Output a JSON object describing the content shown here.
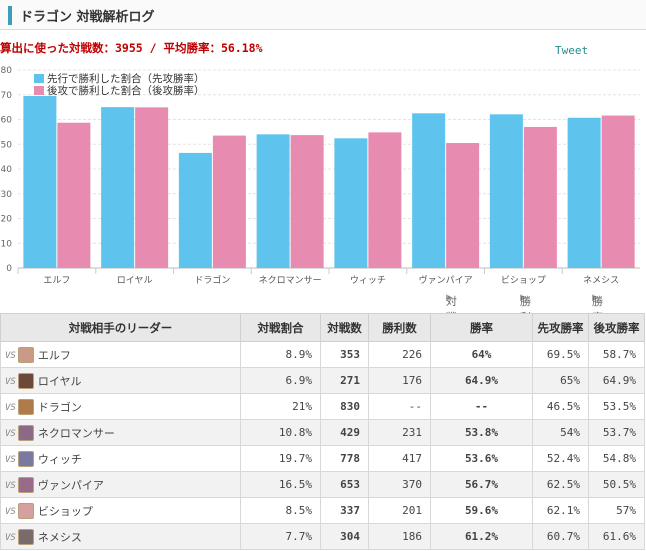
{
  "header": {
    "title": "ドラゴン 対戦解析ログ"
  },
  "summary": {
    "text": "算出に使った対戦数：3955 / 平均勝率：56.18%"
  },
  "tweet_label": "Tweet",
  "chart_data": {
    "type": "bar",
    "categories": [
      "エルフ",
      "ロイヤル",
      "ドラゴン",
      "ネクロマンサー",
      "ウィッチ",
      "ヴァンパイア",
      "ビショップ",
      "ネメシス"
    ],
    "series": [
      {
        "name": "先行で勝利した割合（先攻勝率）",
        "color": "#5ec4ee",
        "values": [
          69.5,
          65,
          46.5,
          54,
          52.4,
          62.5,
          62.1,
          60.7
        ]
      },
      {
        "name": "後攻で勝利した割合（後攻勝率）",
        "color": "#e88bb0",
        "values": [
          58.7,
          64.9,
          53.5,
          53.7,
          54.8,
          50.5,
          57,
          61.6
        ]
      }
    ],
    "yticks": [
      0,
      10,
      20,
      30,
      40,
      50,
      60,
      70,
      80
    ],
    "ylim": [
      0,
      80
    ],
    "grid": true,
    "legend": "top-left"
  },
  "sort": {
    "by_matches": "対戦数順",
    "by_wins": "勝利数順",
    "by_rate": "勝率順"
  },
  "table": {
    "headers": {
      "leader": "対戦相手のリーダー",
      "share": "対戦割合",
      "matches": "対戦数",
      "wins": "勝利数",
      "rate": "勝率",
      "first": "先攻勝率",
      "second": "後攻勝率"
    },
    "vs_label": "VS",
    "rows": [
      {
        "leader": "エルフ",
        "avatar": "#c99a86",
        "share": "8.9%",
        "matches": "353",
        "wins": "226",
        "rate": "64%",
        "first": "69.5%",
        "second": "58.7%"
      },
      {
        "leader": "ロイヤル",
        "avatar": "#6b4a3a",
        "share": "6.9%",
        "matches": "271",
        "wins": "176",
        "rate": "64.9%",
        "first": "65%",
        "second": "64.9%"
      },
      {
        "leader": "ドラゴン",
        "avatar": "#b07a4a",
        "share": "21%",
        "matches": "830",
        "wins": "--",
        "rate": "--",
        "first": "46.5%",
        "second": "53.5%"
      },
      {
        "leader": "ネクロマンサー",
        "avatar": "#8a6a86",
        "share": "10.8%",
        "matches": "429",
        "wins": "231",
        "rate": "53.8%",
        "first": "54%",
        "second": "53.7%"
      },
      {
        "leader": "ウィッチ",
        "avatar": "#7a7aa0",
        "share": "19.7%",
        "matches": "778",
        "wins": "417",
        "rate": "53.6%",
        "first": "52.4%",
        "second": "54.8%"
      },
      {
        "leader": "ヴァンパイア",
        "avatar": "#9a6a8a",
        "share": "16.5%",
        "matches": "653",
        "wins": "370",
        "rate": "56.7%",
        "first": "62.5%",
        "second": "50.5%"
      },
      {
        "leader": "ビショップ",
        "avatar": "#d4a0a0",
        "share": "8.5%",
        "matches": "337",
        "wins": "201",
        "rate": "59.6%",
        "first": "62.1%",
        "second": "57%"
      },
      {
        "leader": "ネメシス",
        "avatar": "#7a6a6a",
        "share": "7.7%",
        "matches": "304",
        "wins": "186",
        "rate": "61.2%",
        "first": "60.7%",
        "second": "61.6%"
      }
    ]
  }
}
